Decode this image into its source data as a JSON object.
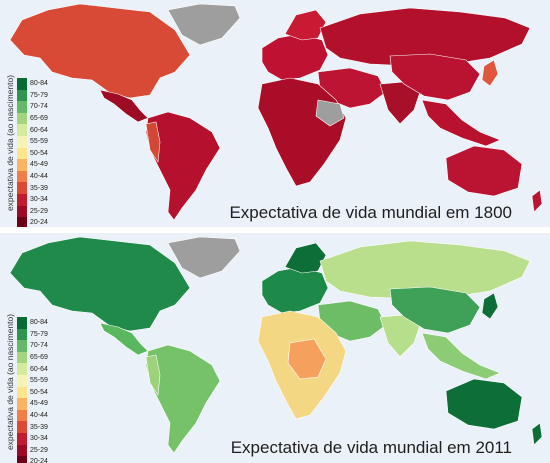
{
  "maps": [
    {
      "id": "1800",
      "title": "Expectativa de vida mundial em 1800",
      "colors": {
        "ocean": "#eaf1f8",
        "north_america": "#d84a35",
        "central_america": "#9d0b24",
        "south_america": "#b5102d",
        "andes": "#d34735",
        "europe": "#bf1131",
        "scandinavia": "#c81a33",
        "russia": "#b3102c",
        "greenland": "#9e9e9e",
        "africa": "#aa0d27",
        "horn_of_africa": "#9e9e9e",
        "middle_east": "#bd1433",
        "india": "#a80f29",
        "china": "#ba1331",
        "se_asia": "#b8122e",
        "japan": "#e0563d",
        "australia": "#ba1432",
        "no_data": "#9e9e9e"
      }
    },
    {
      "id": "2011",
      "title": "Expectativa de vida mundial em 2011",
      "colors": {
        "ocean": "#eaf1f8",
        "north_america": "#1f8a4a",
        "central_america": "#59b85f",
        "south_america": "#76c269",
        "andes": "#9dd17a",
        "europe": "#1d8a49",
        "scandinavia": "#0d6e38",
        "russia": "#b9df8c",
        "greenland": "#9e9e9e",
        "africa": "#f4d783",
        "horn_of_africa": "#f6a05d",
        "middle_east": "#6dbd67",
        "india": "#b6df8b",
        "china": "#3fa157",
        "se_asia": "#8ccc75",
        "japan": "#0d6e38",
        "australia": "#0d6e38",
        "no_data": "#9e9e9e"
      }
    }
  ],
  "legend": {
    "title": "expectativa de vida (ao nascimento)",
    "items": [
      {
        "range": "80-84",
        "color": "#0a6a33"
      },
      {
        "range": "75-79",
        "color": "#2e944e"
      },
      {
        "range": "70-74",
        "color": "#66b966"
      },
      {
        "range": "65-69",
        "color": "#a4d57e"
      },
      {
        "range": "60-64",
        "color": "#d5eb9c"
      },
      {
        "range": "55-59",
        "color": "#f6f4b4"
      },
      {
        "range": "50-54",
        "color": "#fde58c"
      },
      {
        "range": "45-49",
        "color": "#fbb560"
      },
      {
        "range": "40-44",
        "color": "#f07e46"
      },
      {
        "range": "35-39",
        "color": "#dc4a33"
      },
      {
        "range": "30-34",
        "color": "#c01b2f"
      },
      {
        "range": "25-29",
        "color": "#9c0a24"
      },
      {
        "range": "20-24",
        "color": "#6b0016"
      }
    ]
  }
}
